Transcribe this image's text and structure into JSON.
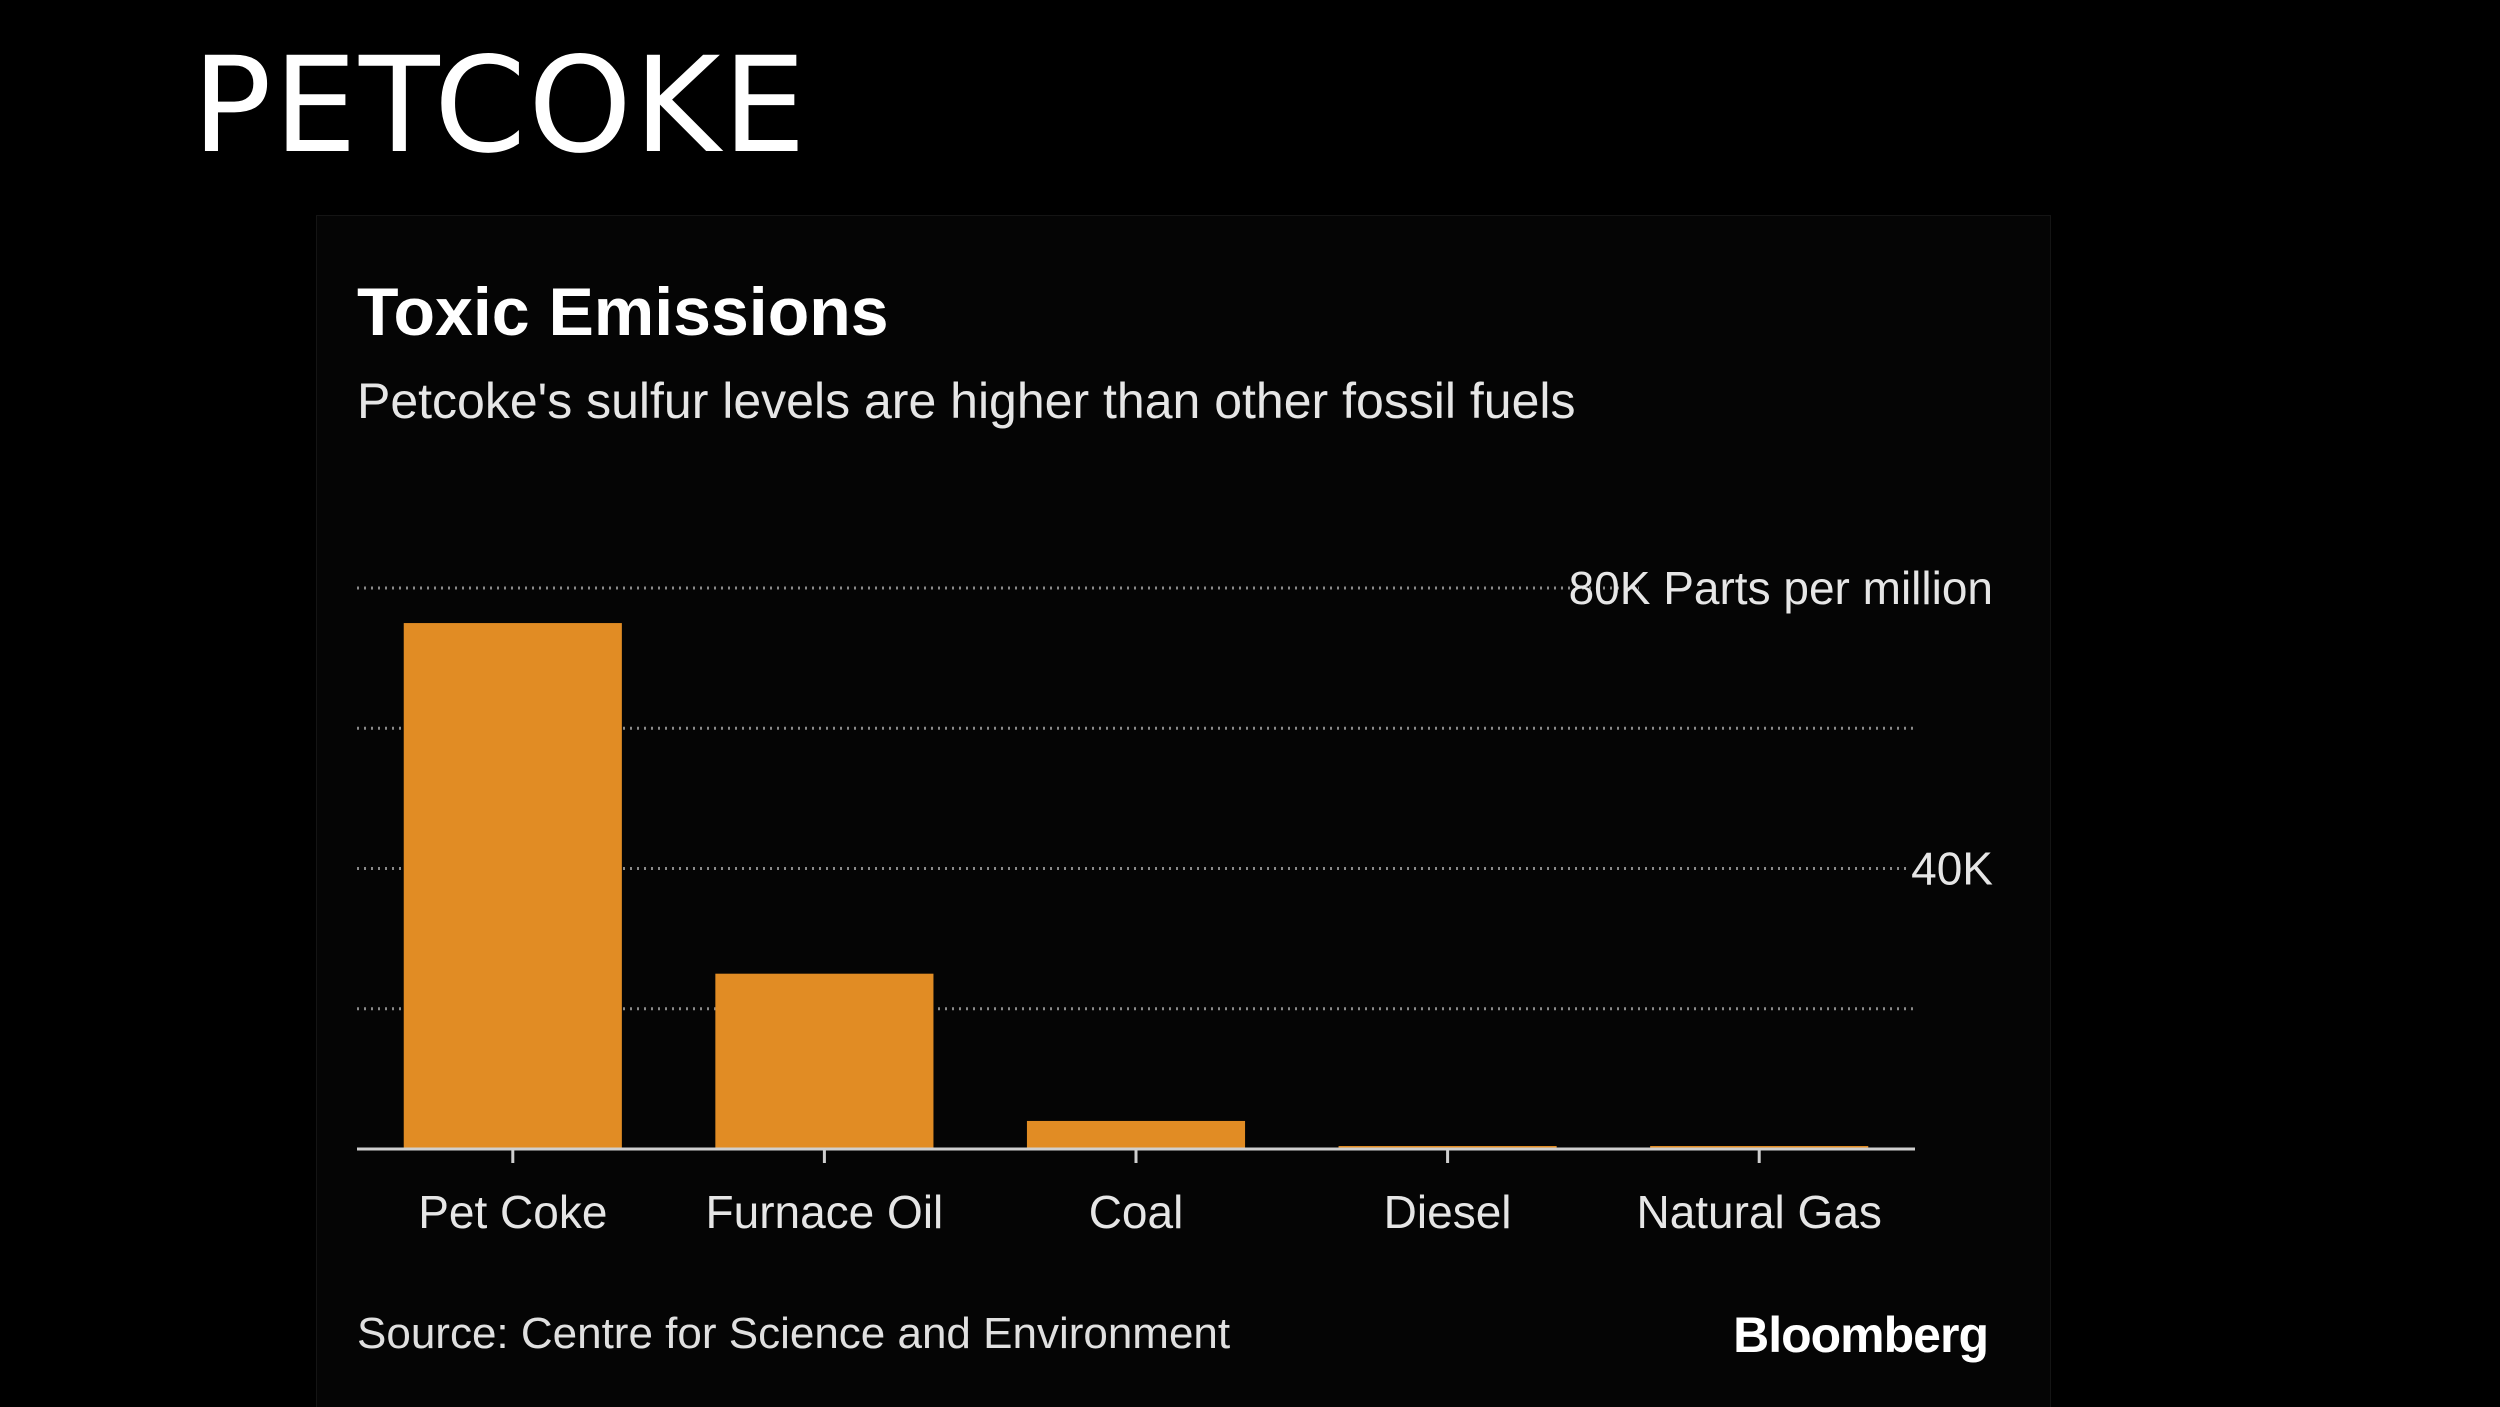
{
  "slide": {
    "title": "PETCOKE"
  },
  "colors": {
    "background": "#000000",
    "bar": "#e18c24",
    "grid": "#8a8a8a",
    "axis": "#cfcfcf",
    "text": "#ffffff"
  },
  "chart_data": {
    "type": "bar",
    "title": "Toxic Emissions",
    "subtitle": "Petcoke's sulfur levels are higher than other fossil fuels",
    "categories": [
      "Pet Coke",
      "Furnace Oil",
      "Coal",
      "Diesel",
      "Natural Gas"
    ],
    "values": [
      75000,
      25000,
      4000,
      50,
      5
    ],
    "ylim": [
      0,
      80000
    ],
    "gridlines": [
      0,
      20000,
      40000,
      60000,
      80000
    ],
    "y_tick_labels": [
      {
        "value": 40000,
        "label": "40K"
      },
      {
        "value": 80000,
        "label": "80K Parts per million"
      }
    ],
    "axis_side": "right",
    "grid": true,
    "grid_style": "dotted",
    "source": "Source: Centre for Science and Environment",
    "brand": "Bloomberg"
  }
}
